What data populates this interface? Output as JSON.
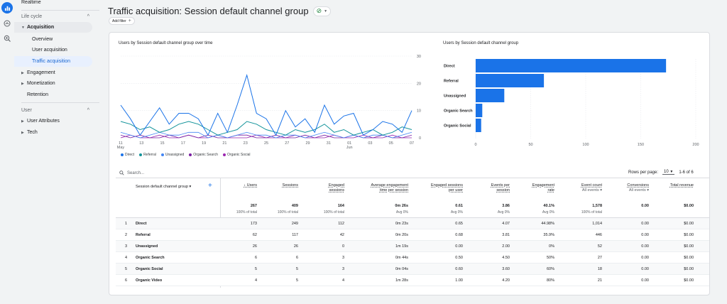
{
  "rail": [
    {
      "name": "reports-icon",
      "active": true
    },
    {
      "name": "explore-icon",
      "active": false
    },
    {
      "name": "advertising-icon",
      "active": false
    }
  ],
  "sidebar": {
    "realtime": "Realtime",
    "lifecycle": "Life cycle",
    "acquisition": "Acquisition",
    "overview": "Overview",
    "user_acquisition": "User acquisition",
    "traffic_acquisition": "Traffic acquisition",
    "engagement": "Engagement",
    "monetization": "Monetization",
    "retention": "Retention",
    "user": "User",
    "user_attributes": "User Attributes",
    "tech": "Tech"
  },
  "header": {
    "title": "Traffic acquisition: Session default channel group",
    "add_filter": "Add filter"
  },
  "line_chart_title": "Users by Session default channel group over time",
  "bar_chart_title": "Users by Session default channel group",
  "colors": {
    "direct": "#1a73e8",
    "referral": "#12939a",
    "unassigned": "#4285f4",
    "organic_search": "#7b1fa2",
    "organic_social": "#9c27b0",
    "bar": "#1a73e8"
  },
  "chart_data": [
    {
      "type": "line",
      "title": "Users by Session default channel group over time",
      "x_tick_labels": [
        "11\nMay",
        "13",
        "15",
        "17",
        "19",
        "21",
        "23",
        "25",
        "27",
        "29",
        "31",
        "01\nJun",
        "03",
        "05",
        "07"
      ],
      "y_ticks": [
        0,
        10,
        20,
        30
      ],
      "ylim": [
        0,
        30
      ],
      "legend_placement": "bottom",
      "series": [
        {
          "name": "Direct",
          "values": [
            12,
            7,
            1,
            6,
            11,
            5,
            9,
            9,
            7,
            1,
            9,
            2,
            12,
            23,
            9,
            7,
            1,
            10,
            4,
            7,
            2,
            12,
            5,
            8,
            9,
            1,
            3,
            6,
            5,
            2,
            10
          ]
        },
        {
          "name": "Referral",
          "values": [
            6,
            5,
            3,
            4,
            2,
            3,
            5,
            6,
            5,
            3,
            1,
            2,
            3,
            6,
            5,
            3,
            2,
            1,
            3,
            2,
            3,
            5,
            2,
            3,
            1,
            2,
            3,
            1,
            2,
            4,
            3
          ]
        },
        {
          "name": "Unassigned",
          "values": [
            2,
            1,
            0,
            1,
            2,
            1,
            1,
            2,
            2,
            0,
            1,
            0,
            1,
            2,
            1,
            1,
            0,
            1,
            1,
            0,
            1,
            2,
            1,
            0,
            1,
            0,
            1,
            1,
            0,
            1,
            2
          ]
        },
        {
          "name": "Organic Search",
          "values": [
            1,
            0,
            1,
            0,
            0,
            1,
            0,
            1,
            0,
            1,
            0,
            0,
            1,
            1,
            0,
            0,
            1,
            0,
            0,
            1,
            0,
            1,
            0,
            0,
            1,
            0,
            0,
            1,
            0,
            0,
            1
          ]
        },
        {
          "name": "Organic Social",
          "values": [
            0,
            1,
            0,
            0,
            1,
            0,
            0,
            1,
            0,
            0,
            1,
            0,
            0,
            0,
            1,
            0,
            0,
            0,
            1,
            0,
            0,
            0,
            1,
            0,
            0,
            1,
            0,
            0,
            1,
            0,
            0
          ]
        }
      ]
    },
    {
      "type": "bar",
      "orientation": "horizontal",
      "title": "Users by Session default channel group",
      "categories": [
        "Direct",
        "Referral",
        "Unassigned",
        "Organic Search",
        "Organic Social"
      ],
      "values": [
        173,
        62,
        26,
        6,
        5
      ],
      "x_ticks": [
        0,
        50,
        100,
        150,
        200
      ],
      "xlim": [
        0,
        200
      ]
    }
  ],
  "table": {
    "search_placeholder": "Search...",
    "rows_per_page_label": "Rows per page:",
    "rows_per_page_value": "10",
    "pagination": "1-6 of 6",
    "dimension_header": "Session default channel group",
    "columns": [
      {
        "label": "Users",
        "sorted": true,
        "total": "267",
        "sub": "100% of total"
      },
      {
        "label": "Sessions",
        "total": "409",
        "sub": "100% of total"
      },
      {
        "label": "Engaged\nsessions",
        "total": "164",
        "sub": "100% of total"
      },
      {
        "label": "Average engagement\ntime per session",
        "total": "0m 26s",
        "sub": "Avg 0%"
      },
      {
        "label": "Engaged sessions\nper user",
        "total": "0.61",
        "sub": "Avg 0%"
      },
      {
        "label": "Events per\nsession",
        "total": "3.86",
        "sub": "Avg 0%"
      },
      {
        "label": "Engagement\nrate",
        "total": "40.1%",
        "sub": "Avg 0%"
      },
      {
        "label": "Event count",
        "dropdown": "All events",
        "total": "1,578",
        "sub": "100% of total"
      },
      {
        "label": "Conversions",
        "dropdown": "All events",
        "total": "0.00",
        "sub": ""
      },
      {
        "label": "Total revenue",
        "total": "$0.00",
        "sub": ""
      }
    ],
    "rows": [
      {
        "idx": "1",
        "name": "Direct",
        "vals": [
          "173",
          "249",
          "112",
          "0m 23s",
          "0.65",
          "4.07",
          "44.98%",
          "1,014",
          "0.00",
          "$0.00"
        ]
      },
      {
        "idx": "2",
        "name": "Referral",
        "vals": [
          "62",
          "117",
          "42",
          "0m 20s",
          "0.68",
          "3.81",
          "35.9%",
          "446",
          "0.00",
          "$0.00"
        ]
      },
      {
        "idx": "3",
        "name": "Unassigned",
        "vals": [
          "26",
          "26",
          "0",
          "1m 19s",
          "0.00",
          "2.00",
          "0%",
          "52",
          "0.00",
          "$0.00"
        ]
      },
      {
        "idx": "4",
        "name": "Organic Search",
        "vals": [
          "6",
          "6",
          "3",
          "0m 44s",
          "0.50",
          "4.50",
          "50%",
          "27",
          "0.00",
          "$0.00"
        ]
      },
      {
        "idx": "5",
        "name": "Organic Social",
        "vals": [
          "5",
          "5",
          "3",
          "0m 04s",
          "0.60",
          "3.60",
          "60%",
          "18",
          "0.00",
          "$0.00"
        ]
      },
      {
        "idx": "6",
        "name": "Organic Video",
        "vals": [
          "4",
          "5",
          "4",
          "1m 28s",
          "1.00",
          "4.20",
          "80%",
          "21",
          "0.00",
          "$0.00"
        ]
      }
    ]
  }
}
